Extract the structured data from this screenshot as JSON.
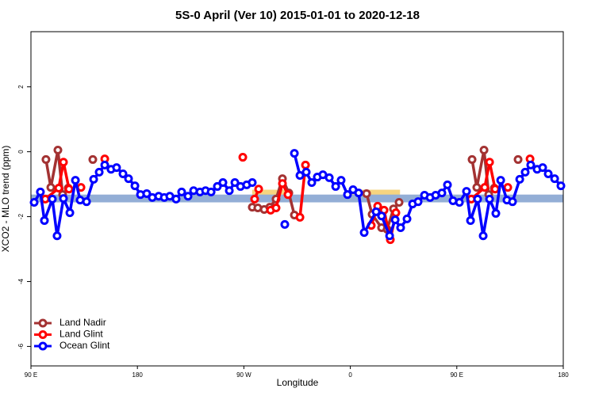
{
  "chart_data": {
    "type": "line",
    "title": "5S-0 April (Ver 10)   2015-01-01 to 2020-12-18",
    "x_label": "Longitude",
    "y_label": "XCO2 - MLO trend (ppm)",
    "xlim": [
      90,
      540
    ],
    "ylim": [
      -6.6,
      3.7
    ],
    "xticks": [
      {
        "value": 90,
        "label": "90 E"
      },
      180,
      {
        "value": 270,
        "label": "90 W"
      },
      {
        "value": 360,
        "label": "0"
      },
      {
        "value": 450,
        "label": "90 E"
      },
      {
        "value": 540,
        "label": "180"
      }
    ],
    "yticks": [
      2,
      0,
      -2,
      -4,
      -6
    ],
    "legend": "bottom-left",
    "bands": [
      {
        "xmin": 277,
        "xmax": 305,
        "ymin": -1.56,
        "ymax": -1.17,
        "color": "#f6d480"
      },
      {
        "xmin": 359,
        "xmax": 402,
        "ymin": -1.56,
        "ymax": -1.17,
        "color": "#f6d480"
      },
      {
        "xmin": 90,
        "xmax": 540,
        "ymin": -1.56,
        "ymax": -1.32,
        "color": "#93aed6"
      }
    ],
    "series": [
      {
        "name": "Land Nadir",
        "color": "#a33232",
        "x": [
          102.7,
          106.8,
          112.8,
          116.8,
          121.5,
          null,
          142.3,
          null,
          277.1,
          281.8,
          287.2,
          291.9,
          297.2,
          302.6,
          308.0,
          312.7,
          null,
          373.7,
          378.4,
          386.4,
          391.1,
          396.5,
          401.2,
          null,
          462.9,
          466.9,
          473.0,
          477.0,
          481.7,
          null,
          501.8
        ],
        "values": [
          -0.24,
          -1.1,
          0.05,
          -1.32,
          -1.12,
          null,
          -0.24,
          null,
          -1.71,
          -1.73,
          -1.78,
          -1.71,
          -1.46,
          -0.83,
          -1.27,
          -1.95,
          null,
          -1.29,
          -1.93,
          -2.34,
          -2.39,
          -1.76,
          -1.56,
          null,
          -0.24,
          -1.1,
          0.05,
          -1.32,
          -1.12,
          null,
          -0.24
        ]
      },
      {
        "name": "Land Glint",
        "color": "#ff0000",
        "x": [
          102.1,
          113.5,
          117.5,
          122.2,
          null,
          132.3,
          null,
          152.4,
          null,
          269.1,
          null,
          279.1,
          282.5,
          null,
          292.6,
          297.2,
          302.6,
          307.3,
          null,
          317.4,
          322.1,
          null,
          377.7,
          383.1,
          388.5,
          393.8,
          398.5,
          null,
          462.2,
          473.6,
          477.7,
          482.4,
          null,
          493.1,
          null,
          511.9
        ],
        "values": [
          -1.46,
          -1.12,
          -0.32,
          -1.15,
          null,
          -1.1,
          null,
          -0.22,
          null,
          -0.17,
          null,
          -1.46,
          -1.15,
          null,
          -1.8,
          -1.73,
          -0.98,
          -1.32,
          null,
          -2.02,
          -0.41,
          null,
          -2.27,
          -1.68,
          -1.8,
          -2.71,
          -1.88,
          null,
          -1.46,
          -1.1,
          -0.32,
          -1.15,
          null,
          -1.1,
          null,
          -0.22
        ]
      },
      {
        "name": "Ocean Glint",
        "color": "#0000ff",
        "x": [
          92.7,
          98.0,
          101.4,
          108.1,
          112.1,
          117.5,
          122.9,
          127.6,
          131.6,
          137.0,
          143.0,
          147.7,
          152.4,
          157.7,
          162.4,
          167.8,
          172.5,
          177.9,
          182.6,
          187.9,
          192.6,
          198.0,
          202.7,
          207.4,
          212.7,
          217.4,
          222.8,
          227.5,
          232.9,
          237.6,
          242.3,
          247.6,
          252.3,
          257.7,
          262.4,
          267.1,
          272.4,
          277.1,
          null,
          304.6,
          null,
          312.7,
          317.4,
          322.7,
          327.4,
          332.1,
          336.8,
          342.2,
          347.6,
          352.2,
          357.6,
          362.3,
          367.0,
          371.7,
          381.8,
          386.4,
          393.2,
          397.9,
          402.5,
          407.9,
          412.6,
          417.3,
          422.7,
          427.4,
          432.1,
          437.4,
          442.1,
          446.8,
          452.2,
          458.2,
          461.6,
          467.6,
          472.3,
          477.7,
          483.0,
          487.1,
          492.4,
          497.1,
          503.2,
          507.8,
          512.5,
          517.9,
          522.6,
          527.3,
          532.7,
          538.0
        ],
        "values": [
          -1.56,
          -1.24,
          -2.12,
          -1.46,
          -2.59,
          -1.44,
          -1.88,
          -0.88,
          -1.49,
          -1.54,
          -0.85,
          -0.63,
          -0.41,
          -0.54,
          -0.49,
          -0.68,
          -0.83,
          -1.05,
          -1.32,
          -1.29,
          -1.41,
          -1.37,
          -1.41,
          -1.37,
          -1.46,
          -1.24,
          -1.37,
          -1.2,
          -1.24,
          -1.2,
          -1.24,
          -1.07,
          -0.95,
          -1.2,
          -0.95,
          -1.07,
          -1.02,
          -0.95,
          null,
          -2.24,
          null,
          -0.05,
          -0.73,
          -0.63,
          -0.95,
          -0.78,
          -0.71,
          -0.8,
          -1.07,
          -0.88,
          -1.32,
          -1.17,
          -1.27,
          -2.49,
          -1.85,
          -1.98,
          -2.59,
          -2.1,
          -2.34,
          -2.07,
          -1.61,
          -1.54,
          -1.34,
          -1.41,
          -1.34,
          -1.27,
          -1.02,
          -1.51,
          -1.56,
          -1.22,
          -2.12,
          -1.46,
          -2.59,
          -1.46,
          -1.9,
          -0.88,
          -1.49,
          -1.54,
          -0.85,
          -0.63,
          -0.41,
          -0.54,
          -0.49,
          -0.68,
          -0.83,
          -1.05
        ]
      }
    ]
  }
}
